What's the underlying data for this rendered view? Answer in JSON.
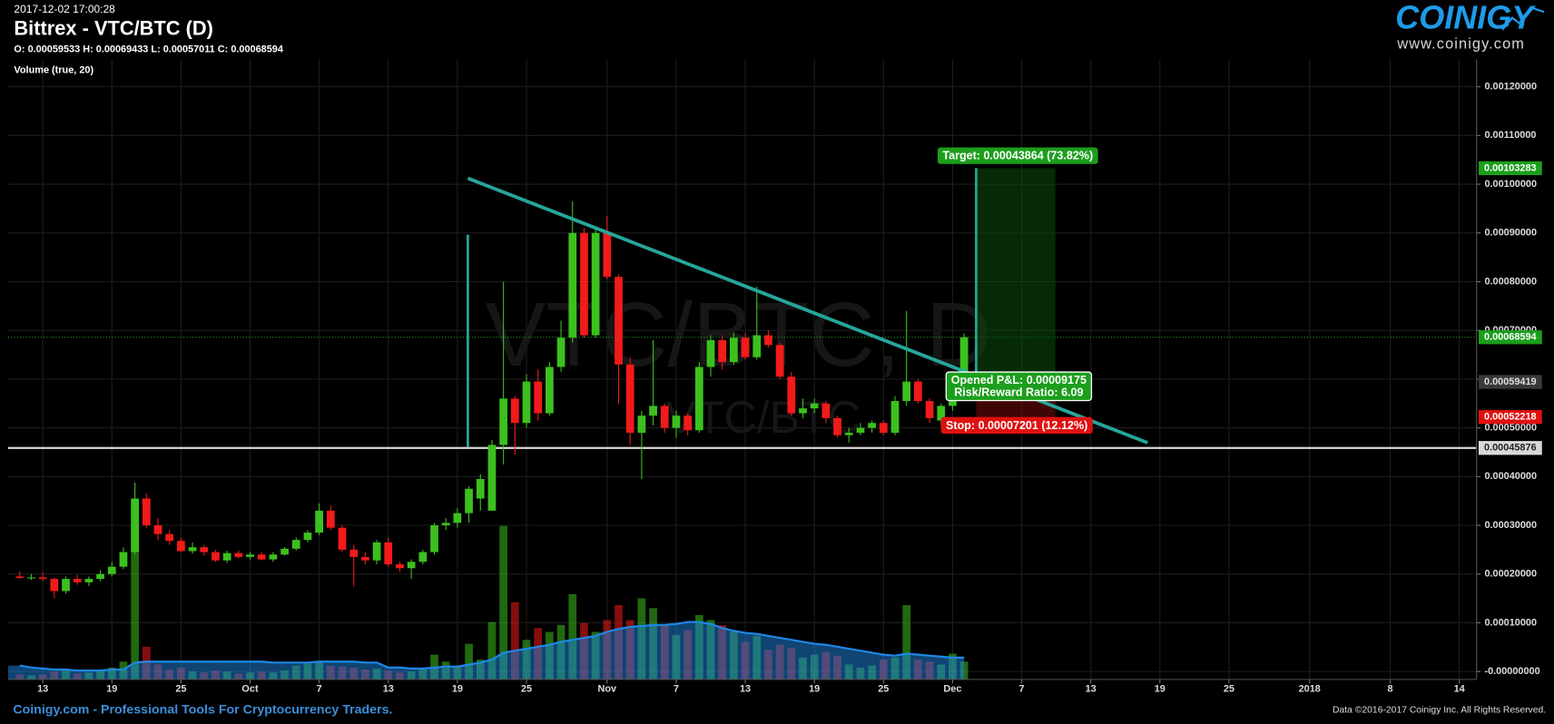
{
  "header": {
    "timestamp": "2017-12-02 17:00:28",
    "title": "Bittrex - VTC/BTC (D)",
    "ohlc": "O: 0.00059533 H: 0.00069433 L: 0.00057011 C: 0.00068594",
    "indicator": "Volume (true, 20)"
  },
  "logo": {
    "brand": "COINIGY",
    "url": "www.coinigy.com"
  },
  "watermark": {
    "main": "VTC/BTC, D",
    "sub": "VTC/BTC"
  },
  "footer": {
    "left": "Coinigy.com - Professional Tools For Cryptocurrency Traders.",
    "right": "Data ©2016-2017 Coinigy Inc. All Rights Reserved."
  },
  "chart_data": {
    "type": "candlestick",
    "categories": [
      null,
      null,
      "13",
      null,
      null,
      null,
      null,
      null,
      "19",
      null,
      null,
      null,
      null,
      null,
      "25",
      null,
      null,
      null,
      null,
      null,
      "Oct",
      null,
      null,
      null,
      null,
      null,
      "7",
      null,
      null,
      null,
      null,
      null,
      "13",
      null,
      null,
      null,
      null,
      null,
      "19",
      null,
      null,
      null,
      null,
      null,
      "25",
      null,
      null,
      null,
      null,
      null,
      null,
      "Nov",
      null,
      null,
      null,
      null,
      null,
      "7",
      null,
      null,
      null,
      null,
      null,
      "13",
      null,
      null,
      null,
      null,
      null,
      "19",
      null,
      null,
      null,
      null,
      null,
      "25",
      null,
      null,
      null,
      null,
      null,
      "Dec",
      null,
      null,
      null,
      null,
      null,
      "7",
      null,
      null,
      null,
      null,
      null,
      "13",
      null,
      null,
      null,
      null,
      null,
      "19",
      null,
      null,
      null,
      null,
      null,
      "25",
      null,
      null,
      null,
      null,
      null,
      null,
      "2018",
      null,
      null,
      null,
      null,
      null,
      null,
      "8",
      null,
      null,
      null,
      null,
      null,
      "14",
      null
    ],
    "ohlc": [
      [
        0.000195,
        0.000205,
        0.00019,
        0.000192
      ],
      [
        0.000192,
        0.0002,
        0.000188,
        0.000193
      ],
      [
        0.000193,
        0.000203,
        0.000185,
        0.00019
      ],
      [
        0.00019,
        0.000193,
        0.00015,
        0.000165
      ],
      [
        0.000165,
        0.000195,
        0.00016,
        0.00019
      ],
      [
        0.00019,
        0.000198,
        0.000178,
        0.000183
      ],
      [
        0.000183,
        0.000195,
        0.000175,
        0.00019
      ],
      [
        0.00019,
        0.000208,
        0.000185,
        0.0002
      ],
      [
        0.0002,
        0.000225,
        0.000195,
        0.000215
      ],
      [
        0.000215,
        0.000255,
        0.00021,
        0.000245
      ],
      [
        0.000245,
        0.000388,
        0.00024,
        0.000355
      ],
      [
        0.000355,
        0.000365,
        0.000295,
        0.0003
      ],
      [
        0.0003,
        0.000315,
        0.00027,
        0.000282
      ],
      [
        0.000282,
        0.00029,
        0.00026,
        0.000268
      ],
      [
        0.000268,
        0.000275,
        0.000245,
        0.000247
      ],
      [
        0.000247,
        0.000265,
        0.000242,
        0.000255
      ],
      [
        0.000255,
        0.00026,
        0.000238,
        0.000245
      ],
      [
        0.000245,
        0.00025,
        0.000225,
        0.000228
      ],
      [
        0.000228,
        0.000248,
        0.000223,
        0.000243
      ],
      [
        0.000243,
        0.000248,
        0.000232,
        0.000235
      ],
      [
        0.000235,
        0.000245,
        0.00023,
        0.00024
      ],
      [
        0.00024,
        0.000245,
        0.000228,
        0.00023
      ],
      [
        0.00023,
        0.000245,
        0.000225,
        0.00024
      ],
      [
        0.00024,
        0.000255,
        0.000238,
        0.000252
      ],
      [
        0.000252,
        0.000275,
        0.000248,
        0.00027
      ],
      [
        0.00027,
        0.00029,
        0.000265,
        0.000285
      ],
      [
        0.000285,
        0.000345,
        0.00028,
        0.00033
      ],
      [
        0.00033,
        0.00034,
        0.00029,
        0.000295
      ],
      [
        0.000295,
        0.0003,
        0.000245,
        0.00025
      ],
      [
        0.00025,
        0.00026,
        0.000175,
        0.000235
      ],
      [
        0.000235,
        0.000245,
        0.00022,
        0.000228
      ],
      [
        0.000228,
        0.00027,
        0.00022,
        0.000265
      ],
      [
        0.000265,
        0.000275,
        0.000215,
        0.00022
      ],
      [
        0.00022,
        0.000225,
        0.000205,
        0.000212
      ],
      [
        0.000212,
        0.00023,
        0.00019,
        0.000225
      ],
      [
        0.000225,
        0.00025,
        0.00022,
        0.000245
      ],
      [
        0.000245,
        0.000305,
        0.00024,
        0.0003
      ],
      [
        0.0003,
        0.000315,
        0.00029,
        0.000305
      ],
      [
        0.000305,
        0.000335,
        0.000295,
        0.000325
      ],
      [
        0.000325,
        0.00038,
        0.000305,
        0.000375
      ],
      [
        0.000355,
        0.000405,
        0.00033,
        0.000395
      ],
      [
        0.00033,
        0.000475,
        0.00033,
        0.000465
      ],
      [
        0.000465,
        0.0008,
        0.000425,
        0.00056
      ],
      [
        0.00056,
        0.000565,
        0.000445,
        0.00051
      ],
      [
        0.00051,
        0.00061,
        0.0005,
        0.000595
      ],
      [
        0.000595,
        0.00062,
        0.000515,
        0.00053
      ],
      [
        0.00053,
        0.000635,
        0.000525,
        0.000625
      ],
      [
        0.000625,
        0.00072,
        0.000615,
        0.000685
      ],
      [
        0.000685,
        0.000965,
        0.000675,
        0.0009
      ],
      [
        0.0009,
        0.00091,
        0.000685,
        0.00069
      ],
      [
        0.00069,
        0.00091,
        0.000685,
        0.0009
      ],
      [
        0.0009,
        0.000935,
        0.000805,
        0.00081
      ],
      [
        0.00081,
        0.000815,
        0.00055,
        0.00063
      ],
      [
        0.00063,
        0.000645,
        0.000465,
        0.00049
      ],
      [
        0.00049,
        0.000535,
        0.000395,
        0.000525
      ],
      [
        0.000525,
        0.00068,
        0.000505,
        0.000545
      ],
      [
        0.000545,
        0.00055,
        0.00049,
        0.0005
      ],
      [
        0.0005,
        0.000535,
        0.00048,
        0.000525
      ],
      [
        0.000525,
        0.00053,
        0.000485,
        0.000495
      ],
      [
        0.000495,
        0.000635,
        0.00049,
        0.000625
      ],
      [
        0.000625,
        0.00069,
        0.000605,
        0.00068
      ],
      [
        0.00068,
        0.00069,
        0.00062,
        0.000635
      ],
      [
        0.000635,
        0.000695,
        0.00063,
        0.000685
      ],
      [
        0.000685,
        0.000695,
        0.00064,
        0.000645
      ],
      [
        0.000645,
        0.00079,
        0.00064,
        0.00069
      ],
      [
        0.00069,
        0.0007,
        0.000665,
        0.00067
      ],
      [
        0.00067,
        0.000675,
        0.0006,
        0.000605
      ],
      [
        0.000605,
        0.000615,
        0.000525,
        0.00053
      ],
      [
        0.00053,
        0.00056,
        0.00052,
        0.00054
      ],
      [
        0.00054,
        0.00056,
        0.00053,
        0.00055
      ],
      [
        0.00055,
        0.000555,
        0.00051,
        0.00052
      ],
      [
        0.00052,
        0.000525,
        0.00048,
        0.000485
      ],
      [
        0.000485,
        0.0005,
        0.00047,
        0.00049
      ],
      [
        0.00049,
        0.00051,
        0.000485,
        0.0005
      ],
      [
        0.0005,
        0.000515,
        0.00049,
        0.00051
      ],
      [
        0.00051,
        0.000515,
        0.000485,
        0.00049
      ],
      [
        0.00049,
        0.000565,
        0.000485,
        0.000555
      ],
      [
        0.000555,
        0.00074,
        0.000545,
        0.000595
      ],
      [
        0.000595,
        0.0006,
        0.00055,
        0.000555
      ],
      [
        0.000555,
        0.00056,
        0.00051,
        0.00052
      ],
      [
        0.000515,
        0.00055,
        0.000505,
        0.000545
      ],
      [
        0.000545,
        0.0006,
        0.000535,
        0.000595
      ],
      [
        0.00059533,
        0.00069433,
        0.00057011,
        0.00068594
      ],
      null,
      null,
      null,
      null,
      null,
      null,
      null,
      null,
      null,
      null,
      null,
      null,
      null,
      null,
      null,
      null,
      null,
      null,
      null,
      null,
      null,
      null,
      null,
      null,
      null,
      null,
      null,
      null,
      null,
      null,
      null,
      null,
      null,
      null,
      null,
      null,
      null,
      null,
      null,
      null,
      null,
      null,
      null,
      null
    ],
    "colors": {
      "up": "#3cc01e",
      "down": "#f21a1a"
    },
    "volume": {
      "values": [
        5,
        4,
        5,
        8,
        9,
        6,
        7,
        10,
        12,
        18,
        155,
        33,
        15,
        10,
        12,
        8,
        7,
        9,
        8,
        6,
        7,
        8,
        7,
        9,
        14,
        16,
        18,
        14,
        13,
        12,
        10,
        11,
        9,
        7,
        8,
        10,
        25,
        18,
        14,
        36,
        20,
        58,
        155,
        78,
        40,
        52,
        48,
        55,
        86,
        57,
        48,
        60,
        75,
        60,
        82,
        72,
        55,
        45,
        50,
        65,
        60,
        55,
        48,
        38,
        44,
        30,
        35,
        32,
        22,
        25,
        28,
        24,
        15,
        12,
        14,
        20,
        22,
        75,
        20,
        18,
        15,
        26,
        18,
        null,
        null,
        null,
        null,
        null,
        null,
        null,
        null,
        null,
        null,
        null,
        null,
        null,
        null,
        null,
        null,
        null,
        null,
        null,
        null,
        null,
        null,
        null,
        null,
        null,
        null,
        null,
        null,
        null,
        null,
        null,
        null,
        null,
        null,
        null,
        null,
        null,
        null,
        null,
        null,
        null,
        null,
        null,
        null
      ],
      "ma": [
        14,
        12,
        11,
        10,
        10,
        9,
        9,
        9,
        10,
        10,
        17,
        18,
        18,
        18,
        18,
        18,
        18,
        18,
        18,
        18,
        18,
        18,
        17,
        17,
        17,
        17,
        18,
        18,
        18,
        18,
        17,
        17,
        12,
        12,
        11,
        11,
        12,
        13,
        13,
        15,
        17,
        20,
        27,
        29,
        31,
        33,
        35,
        38,
        40,
        42,
        44,
        48,
        51,
        53,
        54,
        55,
        55,
        56,
        58,
        58,
        56,
        52,
        49,
        47,
        46,
        44,
        42,
        40,
        38,
        36,
        35,
        33,
        31,
        29,
        27,
        25,
        24,
        26,
        25,
        24,
        23,
        22,
        22,
        null,
        null,
        null,
        null,
        null,
        null,
        null,
        null,
        null,
        null,
        null,
        null,
        null,
        null,
        null,
        null,
        null,
        null,
        null,
        null,
        null,
        null,
        null,
        null,
        null,
        null,
        null,
        null,
        null,
        null,
        null,
        null,
        null,
        null,
        null,
        null,
        null,
        null,
        null,
        null,
        null,
        null,
        null,
        null
      ],
      "ylim": [
        0,
        160
      ],
      "ma_color": "#1e88e5"
    },
    "ylim": [
      -1.63e-05,
      0.0012561
    ],
    "yticks": [
      {
        "value": 0.0012,
        "label": "0.00120000"
      },
      {
        "value": 0.0011,
        "label": "0.00110000"
      },
      {
        "value": 0.001,
        "label": "0.00100000"
      },
      {
        "value": 0.0009,
        "label": "0.00090000"
      },
      {
        "value": 0.0008,
        "label": "0.00080000"
      },
      {
        "value": 0.0007,
        "label": "0.00070000"
      },
      {
        "value": 0.0006,
        "label": "0.00060000"
      },
      {
        "value": 0.0005,
        "label": "0.00050000"
      },
      {
        "value": 0.0004,
        "label": "0.00040000"
      },
      {
        "value": 0.0003,
        "label": "0.00030000"
      },
      {
        "value": 0.0002,
        "label": "0.00020000"
      },
      {
        "value": 0.0001,
        "label": "0.00010000"
      },
      {
        "value": 0,
        "label": "-0.00000000"
      }
    ],
    "grid": true,
    "price_tags": {
      "values": [
        0.00103283,
        0.00068594,
        0.00059419,
        0.00052218,
        0.00045876
      ],
      "colors": [
        "#1c9e1c",
        "#1c9e1c",
        "#3a3a3a",
        "#e01010",
        "#d8d8d8"
      ],
      "text_colors": [
        "#ffffff",
        "#ffffff",
        "#dddddd",
        "#ffffff",
        "#222222"
      ],
      "line_styles": [
        "none",
        "dotted",
        "none",
        "none",
        "solid"
      ]
    },
    "position": {
      "entry": 0.00059419,
      "target": 0.00103283,
      "stop": 0.00052218,
      "target_label": "Target: 0.00043864 (73.82%)",
      "pnl_label": "Opened P&L: 0.00009175",
      "rr_label": "Risk/Reward Ratio: 6.09",
      "stop_label": "Stop: 0.00007201 (12.12%)"
    }
  }
}
